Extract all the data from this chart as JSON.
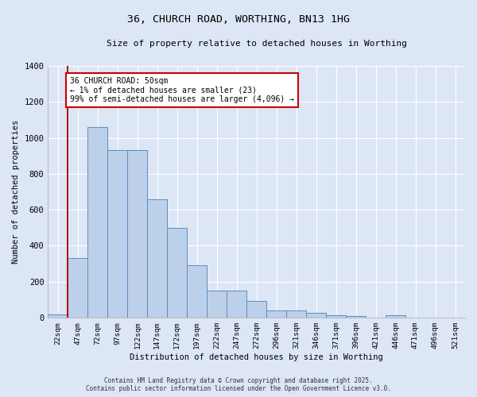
{
  "title1": "36, CHURCH ROAD, WORTHING, BN13 1HG",
  "title2": "Size of property relative to detached houses in Worthing",
  "xlabel": "Distribution of detached houses by size in Worthing",
  "ylabel": "Number of detached properties",
  "categories": [
    "22sqm",
    "47sqm",
    "72sqm",
    "97sqm",
    "122sqm",
    "147sqm",
    "172sqm",
    "197sqm",
    "222sqm",
    "247sqm",
    "272sqm",
    "296sqm",
    "321sqm",
    "346sqm",
    "371sqm",
    "396sqm",
    "421sqm",
    "446sqm",
    "471sqm",
    "496sqm",
    "521sqm"
  ],
  "values": [
    20,
    330,
    1060,
    930,
    930,
    660,
    500,
    290,
    150,
    150,
    95,
    40,
    40,
    25,
    15,
    10,
    0,
    15,
    0,
    0,
    0
  ],
  "bar_color": "#bdd0e9",
  "bar_edge_color": "#5b8dc0",
  "background_color": "#dce6f5",
  "grid_color": "#ffffff",
  "vline_color": "#aa0000",
  "annotation_text": "36 CHURCH ROAD: 50sqm\n← 1% of detached houses are smaller (23)\n99% of semi-detached houses are larger (4,096) →",
  "annotation_box_color": "#ffffff",
  "annotation_box_edge": "#cc0000",
  "ylim": [
    0,
    1400
  ],
  "yticks": [
    0,
    200,
    400,
    600,
    800,
    1000,
    1200,
    1400
  ],
  "footnote1": "Contains HM Land Registry data © Crown copyright and database right 2025.",
  "footnote2": "Contains public sector information licensed under the Open Government Licence v3.0."
}
